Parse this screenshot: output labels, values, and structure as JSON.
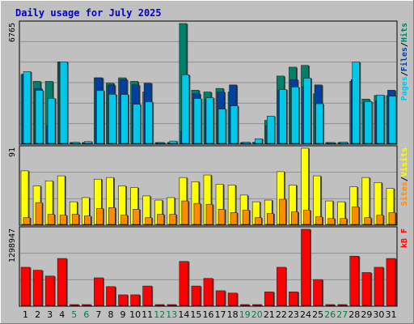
{
  "chart_data": {
    "type": "bar",
    "title": "Daily usage for July 2025",
    "categories": [
      "1",
      "2",
      "3",
      "4",
      "5",
      "6",
      "7",
      "8",
      "9",
      "10",
      "11",
      "12",
      "13",
      "14",
      "15",
      "16",
      "17",
      "18",
      "19",
      "20",
      "21",
      "22",
      "23",
      "24",
      "25",
      "26",
      "27",
      "28",
      "29",
      "30",
      "31"
    ],
    "weekend_days": [
      "5",
      "6",
      "12",
      "13",
      "19",
      "20",
      "26",
      "27"
    ],
    "colors": {
      "title": "#0000cc",
      "weekday_label": "#000000",
      "weekend_label": "#008040",
      "hits": "#00c8e8",
      "files": "#0040a0",
      "pages": "#00806a",
      "visits": "#ffff00",
      "sites": "#ff8c00",
      "kbytes": "#ff0000"
    },
    "panels": [
      {
        "id": "requests",
        "y_max_label": "6765",
        "ymax": 6765,
        "legend": [
          {
            "text": "Pages",
            "color_key": "hits"
          },
          {
            "text": "/",
            "color_key": "weekday_label"
          },
          {
            "text": "Files",
            "color_key": "files"
          },
          {
            "text": "/",
            "color_key": "weekday_label"
          },
          {
            "text": "Hits",
            "color_key": "pages"
          }
        ],
        "series": [
          {
            "key": "pages",
            "values": [
              3900,
              3500,
              3500,
              4600,
              30,
              30,
              3700,
              3400,
              3700,
              3500,
              2900,
              20,
              40,
              6765,
              3000,
              2900,
              3100,
              2900,
              10,
              60,
              1300,
              3800,
              4300,
              4400,
              2800,
              10,
              10,
              3500,
              2500,
              2700,
              2700
            ]
          },
          {
            "key": "files",
            "values": [
              3900,
              3100,
              1000,
              4600,
              30,
              30,
              3700,
              3300,
              3600,
              3300,
              3400,
              20,
              40,
              670,
              2800,
              2500,
              2900,
              3300,
              10,
              60,
              1000,
              3000,
              3600,
              3200,
              3300,
              10,
              10,
              3600,
              2300,
              2400,
              3000
            ]
          },
          {
            "key": "hits",
            "values": [
              4050,
              2990,
              2540,
              4600,
              60,
              100,
              2980,
              2770,
              2760,
              2210,
              2340,
              40,
              130,
              3870,
              2530,
              2580,
              1940,
              2120,
              70,
              260,
              1540,
              3040,
              3180,
              3680,
              2240,
              40,
              70,
              4590,
              2360,
              2730,
              2660
            ]
          }
        ]
      },
      {
        "id": "visitors",
        "y_max_label": "91",
        "ymax": 91,
        "legend": [
          {
            "text": "Sites",
            "color_key": "sites"
          },
          {
            "text": "/",
            "color_key": "weekday_label"
          },
          {
            "text": "Visits",
            "color_key": "visits"
          }
        ],
        "series": [
          {
            "key": "visits",
            "values": [
              64,
              46,
              52,
              58,
              27,
              32,
              54,
              56,
              46,
              44,
              34,
              29,
              32,
              56,
              51,
              59,
              48,
              47,
              35,
              27,
              29,
              63,
              47,
              91,
              58,
              28,
              27,
              45,
              56,
              50,
              43
            ]
          },
          {
            "key": "sites",
            "values": [
              8,
              26,
              12,
              11,
              12,
              10,
              19,
              20,
              11,
              18,
              8,
              12,
              12,
              28,
              25,
              24,
              18,
              14,
              17,
              8,
              13,
              30,
              15,
              17,
              9,
              7,
              7,
              21,
              8,
              11,
              14
            ]
          }
        ]
      },
      {
        "id": "volume",
        "y_max_label": "1298947",
        "ymax": 1298947,
        "legend": [
          {
            "text": "kB F",
            "color_key": "kbytes"
          }
        ],
        "series": [
          {
            "key": "kbytes",
            "values": [
              650000,
              600000,
              500000,
              800000,
              5000,
              5000,
              470000,
              320000,
              180000,
              180000,
              330000,
              5000,
              5000,
              750000,
              330000,
              460000,
              250000,
              210000,
              5000,
              5000,
              230000,
              650000,
              230000,
              1298947,
              440000,
              5000,
              5000,
              840000,
              560000,
              650000,
              800000
            ]
          }
        ]
      }
    ]
  }
}
